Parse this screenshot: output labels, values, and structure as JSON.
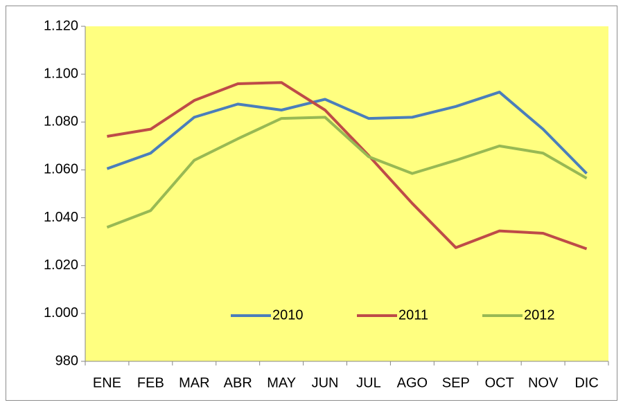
{
  "chart_data": {
    "type": "line",
    "categories": [
      "ENE",
      "FEB",
      "MAR",
      "ABR",
      "MAY",
      "JUN",
      "JUL",
      "AGO",
      "SEP",
      "OCT",
      "NOV",
      "DIC"
    ],
    "series": [
      {
        "name": "2010",
        "color": "#4a7ebb",
        "values": [
          1060.5,
          1067,
          1082,
          1087.5,
          1085,
          1089.5,
          1081.5,
          1082,
          1086.5,
          1092.5,
          1077,
          1058.5
        ]
      },
      {
        "name": "2011",
        "color": "#be4b48",
        "values": [
          1074,
          1077,
          1089,
          1096,
          1096.5,
          1085,
          1066,
          1046,
          1027.5,
          1034.5,
          1033.5,
          1027
        ]
      },
      {
        "name": "2012",
        "color": "#98b954",
        "values": [
          1036,
          1043,
          1064,
          1073,
          1081.5,
          1082,
          1065.5,
          1058.5,
          1064,
          1070,
          1067,
          1056.5
        ]
      }
    ],
    "ylim": [
      980,
      1120
    ],
    "yticks": [
      {
        "value": 980,
        "label": "980"
      },
      {
        "value": 1000,
        "label": "1.000"
      },
      {
        "value": 1020,
        "label": "1.020"
      },
      {
        "value": 1040,
        "label": "1.040"
      },
      {
        "value": 1060,
        "label": "1.060"
      },
      {
        "value": 1080,
        "label": "1.080"
      },
      {
        "value": 1100,
        "label": "1.100"
      },
      {
        "value": 1120,
        "label": "1.120"
      }
    ],
    "legend": "bottom",
    "plot_background": "#ffff80"
  }
}
